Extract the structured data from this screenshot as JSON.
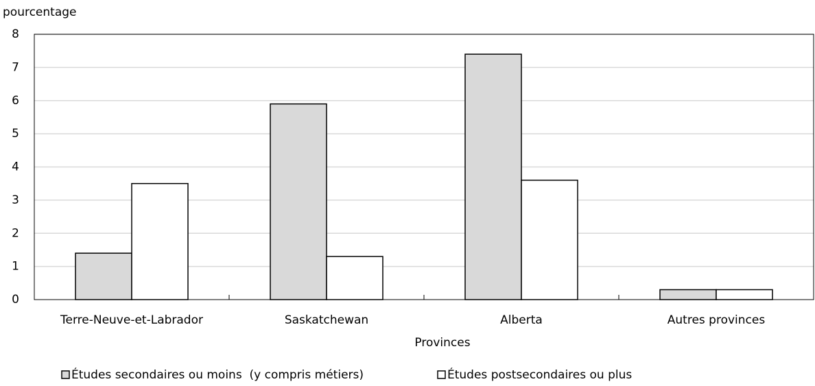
{
  "chart_data": {
    "type": "bar",
    "y_label": "pourcentage",
    "x_label": "Provinces",
    "categories": [
      "Terre-Neuve-et-Labrador",
      "Saskatchewan",
      "Alberta",
      "Autres provinces"
    ],
    "series": [
      {
        "name": "Études secondaires ou moins  (y compris métiers)",
        "color": "#d9d9d9",
        "values": [
          1.4,
          5.9,
          7.4,
          0.3
        ]
      },
      {
        "name": "Études postsecondaires ou plus",
        "color": "#ffffff",
        "values": [
          3.5,
          1.3,
          3.6,
          0.3
        ]
      }
    ],
    "ylim": [
      0,
      8
    ],
    "yticks": [
      0,
      1,
      2,
      3,
      4,
      5,
      6,
      7,
      8
    ],
    "grid": true,
    "legend": "bottom"
  }
}
